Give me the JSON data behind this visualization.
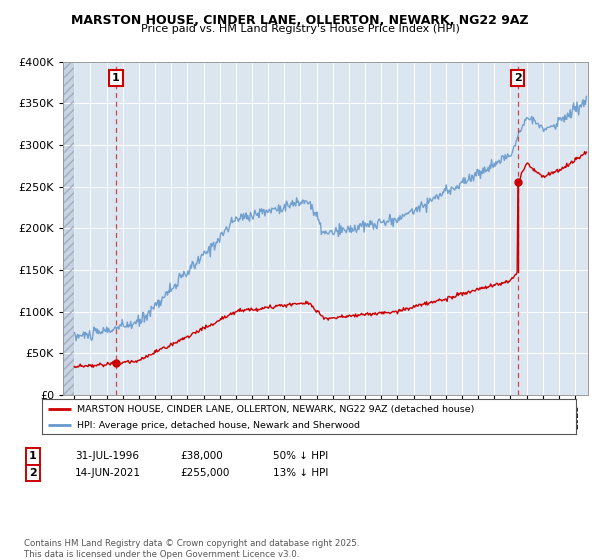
{
  "title_line1": "MARSTON HOUSE, CINDER LANE, OLLERTON, NEWARK, NG22 9AZ",
  "title_line2": "Price paid vs. HM Land Registry's House Price Index (HPI)",
  "ylim": [
    0,
    400000
  ],
  "yticks": [
    0,
    50000,
    100000,
    150000,
    200000,
    250000,
    300000,
    350000,
    400000
  ],
  "ytick_labels": [
    "£0",
    "£50K",
    "£100K",
    "£150K",
    "£200K",
    "£250K",
    "£300K",
    "£350K",
    "£400K"
  ],
  "xlim_start": 1993.3,
  "xlim_end": 2025.8,
  "transaction1_x": 1996.58,
  "transaction1_y": 38000,
  "transaction2_x": 2021.45,
  "transaction2_y": 255000,
  "marker_color": "#cc0000",
  "hpi_color": "#6699cc",
  "price_color": "#cc0000",
  "annotation1_label": "1",
  "annotation2_label": "2",
  "legend_entry1": "MARSTON HOUSE, CINDER LANE, OLLERTON, NEWARK, NG22 9AZ (detached house)",
  "legend_entry2": "HPI: Average price, detached house, Newark and Sherwood",
  "table_row1": [
    "1",
    "31-JUL-1996",
    "£38,000",
    "50% ↓ HPI"
  ],
  "table_row2": [
    "2",
    "14-JUN-2021",
    "£255,000",
    "13% ↓ HPI"
  ],
  "footer": "Contains HM Land Registry data © Crown copyright and database right 2025.\nThis data is licensed under the Open Government Licence v3.0.",
  "bg_color": "#ffffff",
  "plot_bg_color": "#dce6f1",
  "hatch_bg_color": "#c8d4e3",
  "grid_color": "#ffffff"
}
